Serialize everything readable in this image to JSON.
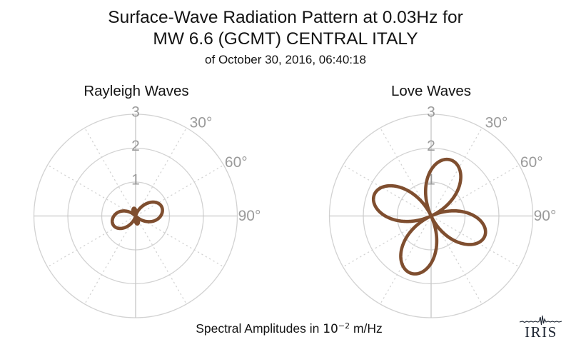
{
  "figure_title": {
    "line1": "Surface-Wave Radiation Pattern at 0.03Hz for",
    "line2": "MW 6.6 (GCMT) CENTRAL ITALY",
    "line3": "of October 30, 2016, 06:40:18"
  },
  "footer": {
    "caption_prefix": "Spectral Amplitudes in ",
    "caption_base": "10",
    "caption_exponent": "−2",
    "caption_suffix": " m/Hz"
  },
  "logo": {
    "text": "IRIS",
    "icon": "seismogram-icon"
  },
  "colors": {
    "curve": "#7f4e2f",
    "grid": "#d2d2d2",
    "axis": "#c6c6c6",
    "labels": "#9a9a9a",
    "title": "#141414",
    "logo": "#1e2633",
    "background": "#ffffff"
  },
  "chart_data": [
    {
      "type": "line",
      "subtype": "polar",
      "title": "Rayleigh Waves",
      "units": "10^-2 m/Hz",
      "grid": "on",
      "radial_ticks": [
        1,
        2,
        3
      ],
      "radial_max": 3,
      "angle_tick_labels": [
        "30°",
        "60°",
        "90°"
      ],
      "angle_tick_degrees": [
        30,
        60,
        90
      ],
      "angle_grid_step_deg": 30,
      "pattern": {
        "kind": "two-lobe",
        "formula": "r(theta)=|c + a*cos(2*(theta-peak))|",
        "c": 0.27,
        "a": 0.5,
        "peak_azimuth_deg": 75,
        "east_west_skew": 0.07,
        "wobble": 0.015,
        "major_lobe_azimuths_deg": [
          75,
          255
        ],
        "major_lobe_amplitude": 0.8,
        "minor_lobe_azimuths_deg": [
          165,
          345
        ],
        "minor_lobe_amplitude": 0.25
      }
    },
    {
      "type": "line",
      "subtype": "polar",
      "title": "Love Waves",
      "units": "10^-2 m/Hz",
      "grid": "on",
      "radial_ticks": [
        1,
        2,
        3
      ],
      "radial_max": 3,
      "angle_tick_labels": [
        "30°",
        "60°",
        "90°"
      ],
      "angle_tick_degrees": [
        30,
        60,
        90
      ],
      "angle_grid_step_deg": 30,
      "pattern": {
        "kind": "four-lobe",
        "formula": "r(theta)=A*|sin(2*(theta+25deg))|",
        "lobe_azimuths_deg": [
          20,
          110,
          200,
          290
        ],
        "lobe_amplitudes": [
          1.76,
          1.68,
          1.8,
          1.78
        ],
        "wobble": 0.012
      }
    }
  ]
}
